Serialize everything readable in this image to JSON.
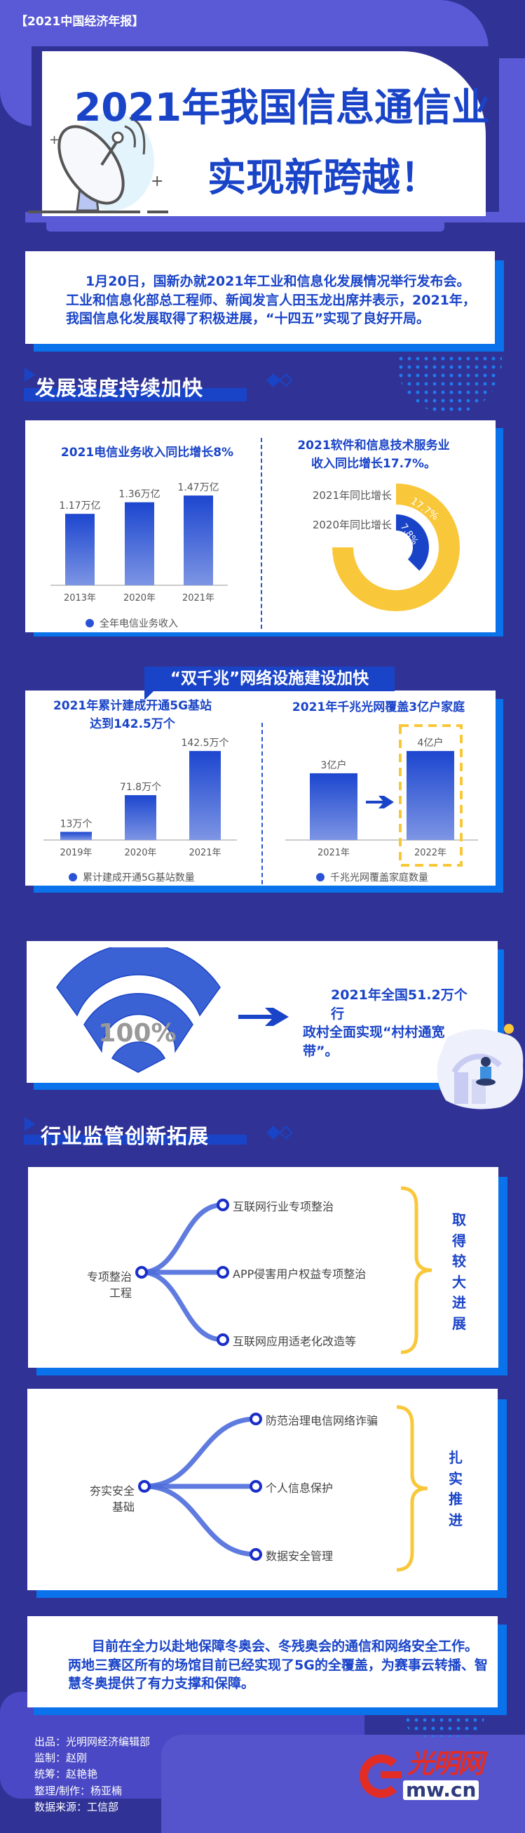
{
  "header": {
    "tag": "【2021中国经济年报】",
    "title_line1": "2021年我国信息通信业",
    "title_line2": "实现新跨越！"
  },
  "intro": {
    "lines": [
      "1月20日，国新办就2021年工业和信息化发展情况举行发布会。",
      "工业和信息化部总工程师、新闻发言人田玉龙出席并表示，2021年，",
      "我国信息化发展取得了积极进展，“十四五”实现了良好开局。"
    ]
  },
  "section1": {
    "heading": "发展速度持续加快"
  },
  "colors": {
    "background": "#303395",
    "accent_blue": "#1a44c8",
    "panel_purple": "#5a5ad6",
    "yellow": "#f9c73a",
    "shadow_blue": "#0a72ea"
  },
  "chart_data": [
    {
      "type": "bar",
      "title": "2021电信业务收入同比增长8%",
      "categories": [
        "2013年",
        "2020年",
        "2021年"
      ],
      "values": [
        1.17,
        1.36,
        1.47
      ],
      "value_labels": [
        "1.17万亿",
        "1.36万亿",
        "1.47万亿"
      ],
      "legend": "全年电信业务收入",
      "unit": "万亿"
    },
    {
      "type": "pie",
      "title_lines": [
        "2021软件和信息技术服务业",
        "收入同比增长17.7%。"
      ],
      "series": [
        {
          "name": "2021年同比增长",
          "value": 17.7,
          "label": "17.7%",
          "color": "#f9c73a"
        },
        {
          "name": "2020年同比增长",
          "value": 7.8,
          "label": "7.8%",
          "color": "#1a44c8"
        }
      ]
    },
    {
      "type": "bar",
      "title_lines": [
        "2021年累计建成开通5G基站",
        "达到142.5万个"
      ],
      "categories": [
        "2019年",
        "2020年",
        "2021年"
      ],
      "values": [
        13,
        71.8,
        142.5
      ],
      "value_labels": [
        "13万个",
        "71.8万个",
        "142.5万个"
      ],
      "legend": "累计建成开通5G基站数量",
      "unit": "万个"
    },
    {
      "type": "bar",
      "title": "2021年千兆光网覆盖3亿户家庭",
      "categories": [
        "2021年",
        "2022年"
      ],
      "values": [
        3,
        4
      ],
      "value_labels": [
        "3亿户",
        "4亿户"
      ],
      "legend": "千兆光网覆盖家庭数量",
      "unit": "亿户",
      "highlighted": "2022年"
    }
  ],
  "section2": {
    "banner": "“双千兆”网络设施建设加快"
  },
  "broadband": {
    "percent": "100%",
    "lines": [
      "2021年全国51.2万个行",
      "政村全面实现“村村通宽",
      "带”。"
    ]
  },
  "section3": {
    "heading": "行业监管创新拓展"
  },
  "tree1": {
    "root": [
      "专项整治",
      "工程"
    ],
    "children": [
      "互联网行业专项整治",
      "APP侵害用户权益专项整治",
      "互联网应用适老化改造等"
    ],
    "result": [
      "取",
      "得",
      "较",
      "大",
      "进",
      "展"
    ]
  },
  "tree2": {
    "root": [
      "夯实安全",
      "基础"
    ],
    "children": [
      "防范治理电信网络诈骗",
      "个人信息保护",
      "数据安全管理"
    ],
    "result": [
      "扎",
      "实",
      "推",
      "进"
    ]
  },
  "closing": {
    "lines": [
      "目前在全力以赴地保障冬奥会、冬残奥会的通信和网络安全工作。",
      "两地三赛区所有的场馆目前已经实现了5G的全覆盖，为赛事云转播、智",
      "慧冬奥提供了有力支撑和保障。"
    ]
  },
  "credits": [
    "出品：光明网经济编辑部",
    "监制：赵刚",
    "统筹：赵艳艳",
    "整理/制作：杨亚楠",
    "数据来源：工信部"
  ],
  "logo": {
    "text": "光明网",
    "domain": "mw.cn",
    "initial": "G"
  }
}
